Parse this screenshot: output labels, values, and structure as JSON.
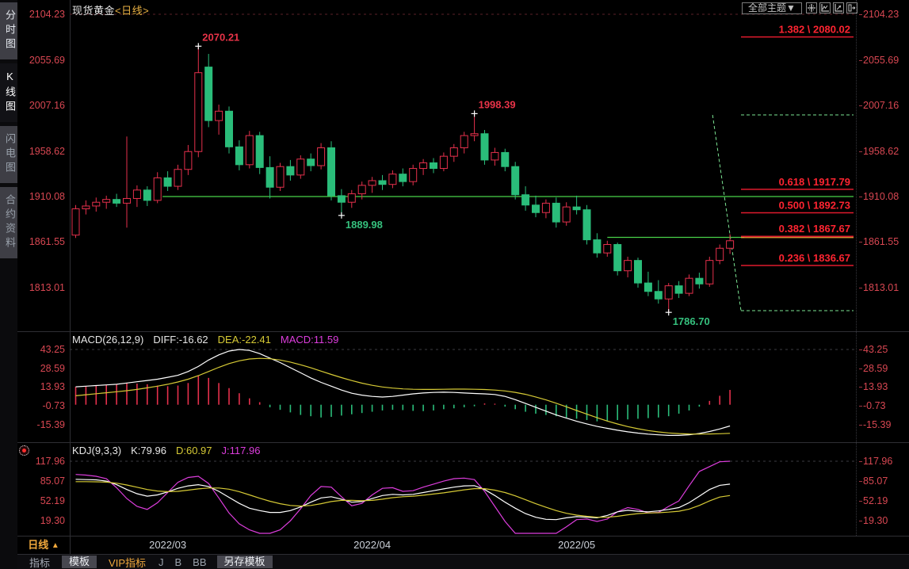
{
  "app": {
    "title_symbol": "现货黄金",
    "title_period": "<日线>",
    "theme_button": "全部主题▼"
  },
  "sidebar": {
    "items": [
      {
        "label": "分时图",
        "state": "normal"
      },
      {
        "label": "K线图",
        "state": "active"
      },
      {
        "label": "闪电图",
        "state": "dim"
      },
      {
        "label": "合约资料",
        "state": "dim"
      }
    ]
  },
  "top_icons": [
    {
      "name": "crosshair-icon"
    },
    {
      "name": "chart-line-icon"
    },
    {
      "name": "chart-arrow-icon"
    },
    {
      "name": "panel-arrow-icon"
    }
  ],
  "xaxis": {
    "period_label": "日线",
    "period_arrow": "▲",
    "months": [
      {
        "label": "2022/03",
        "index": 9
      },
      {
        "label": "2022/04",
        "index": 29
      },
      {
        "label": "2022/05",
        "index": 49
      }
    ]
  },
  "bottom_tabs": [
    {
      "label": "指标",
      "style": "plain"
    },
    {
      "label": "模板",
      "style": "chip"
    },
    {
      "label": "VIP指标",
      "style": "vip"
    },
    {
      "label": "J",
      "style": "key"
    },
    {
      "label": "B",
      "style": "key"
    },
    {
      "label": "BB",
      "style": "key"
    },
    {
      "label": "另存模板",
      "style": "chip"
    }
  ],
  "chart_data": [
    {
      "type": "candlestick",
      "title": "现货黄金 日线",
      "y_ticks": [
        "2104.23",
        "2055.69",
        "2007.16",
        "1958.62",
        "1910.08",
        "1861.55",
        "1813.01"
      ],
      "ylim": [
        1813.01,
        2104.23
      ],
      "up_color": "#e5304c",
      "down_color": "#2abd7a",
      "candles": [
        [
          1869,
          1901,
          1866,
          1897
        ],
        [
          1897,
          1906,
          1891,
          1900
        ],
        [
          1900,
          1909,
          1894,
          1904
        ],
        [
          1904,
          1911,
          1897,
          1907
        ],
        [
          1907,
          1913,
          1899,
          1903
        ],
        [
          1903,
          1974,
          1877,
          1908
        ],
        [
          1908,
          1922,
          1899,
          1917
        ],
        [
          1917,
          1921,
          1900,
          1906
        ],
        [
          1906,
          1936,
          1903,
          1930
        ],
        [
          1930,
          1937,
          1916,
          1921
        ],
        [
          1921,
          1944,
          1917,
          1939
        ],
        [
          1939,
          1965,
          1933,
          1958
        ],
        [
          1958,
          2070.21,
          1952,
          2042
        ],
        [
          2048,
          2062,
          1984,
          1991
        ],
        [
          1991,
          2008,
          1976,
          2001
        ],
        [
          2001,
          2006,
          1956,
          1963
        ],
        [
          1963,
          1970,
          1938,
          1944
        ],
        [
          1944,
          1980,
          1940,
          1975
        ],
        [
          1975,
          1979,
          1934,
          1941
        ],
        [
          1941,
          1953,
          1908,
          1920
        ],
        [
          1920,
          1946,
          1916,
          1942
        ],
        [
          1942,
          1949,
          1927,
          1933
        ],
        [
          1933,
          1954,
          1929,
          1950
        ],
        [
          1950,
          1956,
          1937,
          1943
        ],
        [
          1943,
          1967,
          1939,
          1962
        ],
        [
          1962,
          1969,
          1906,
          1911
        ],
        [
          1911,
          1918,
          1889.98,
          1904
        ],
        [
          1904,
          1917,
          1898,
          1913
        ],
        [
          1913,
          1926,
          1907,
          1922
        ],
        [
          1922,
          1931,
          1914,
          1927
        ],
        [
          1927,
          1933,
          1917,
          1923
        ],
        [
          1923,
          1938,
          1919,
          1934
        ],
        [
          1934,
          1940,
          1921,
          1926
        ],
        [
          1926,
          1944,
          1922,
          1940
        ],
        [
          1940,
          1950,
          1933,
          1946
        ],
        [
          1946,
          1951,
          1935,
          1940
        ],
        [
          1940,
          1957,
          1937,
          1953
        ],
        [
          1953,
          1966,
          1947,
          1962
        ],
        [
          1962,
          1979,
          1956,
          1975
        ],
        [
          1975,
          1998.39,
          1969,
          1977
        ],
        [
          1977,
          1981,
          1944,
          1949
        ],
        [
          1949,
          1962,
          1943,
          1957
        ],
        [
          1957,
          1961,
          1937,
          1942
        ],
        [
          1942,
          1947,
          1907,
          1912
        ],
        [
          1912,
          1921,
          1895,
          1901
        ],
        [
          1901,
          1911,
          1888,
          1893
        ],
        [
          1893,
          1907,
          1887,
          1903
        ],
        [
          1903,
          1909,
          1877,
          1883
        ],
        [
          1883,
          1904,
          1879,
          1899
        ],
        [
          1899,
          1911,
          1891,
          1896
        ],
        [
          1896,
          1901,
          1859,
          1864
        ],
        [
          1864,
          1871,
          1845,
          1850
        ],
        [
          1850,
          1863,
          1846,
          1859
        ],
        [
          1859,
          1861,
          1826,
          1831
        ],
        [
          1831,
          1846,
          1824,
          1842
        ],
        [
          1842,
          1845,
          1813,
          1818
        ],
        [
          1818,
          1830,
          1804,
          1809
        ],
        [
          1809,
          1821,
          1796,
          1801
        ],
        [
          1801,
          1818,
          1786.7,
          1815
        ],
        [
          1815,
          1820,
          1802,
          1807
        ],
        [
          1807,
          1827,
          1804,
          1823
        ],
        [
          1823,
          1829,
          1812,
          1817
        ],
        [
          1817,
          1846,
          1814,
          1842
        ],
        [
          1842,
          1859,
          1838,
          1855
        ],
        [
          1855,
          1870,
          1849,
          1863
        ]
      ],
      "annotations": [
        {
          "candle": 12,
          "point": "high",
          "text": "2070.21",
          "color": "#e83348",
          "side": "above"
        },
        {
          "candle": 39,
          "point": "high",
          "text": "1998.39",
          "color": "#e83348",
          "side": "above"
        },
        {
          "candle": 26,
          "point": "low",
          "text": "1889.98",
          "color": "#35c07d",
          "side": "below"
        },
        {
          "candle": 58,
          "point": "low",
          "text": "1786.70",
          "color": "#35c07d",
          "side": "below"
        }
      ],
      "hlines": [
        {
          "price": 1910.08,
          "from_candle": 8.5,
          "to_edge": true,
          "color": "#49d249"
        },
        {
          "price": 1866.6,
          "from_candle": 52,
          "to_candle": 65.4,
          "color": "#49d249"
        },
        {
          "price": 1867.67,
          "fib_zone": true,
          "color": "#f0a238"
        }
      ],
      "fib_levels": [
        {
          "ratio": "1.382",
          "price": "2080.02"
        },
        {
          "ratio": "0.618",
          "price": "1917.79"
        },
        {
          "ratio": "0.500",
          "price": "1892.73"
        },
        {
          "ratio": "0.382",
          "price": "1867.67"
        },
        {
          "ratio": "0.236",
          "price": "1836.67"
        }
      ],
      "projection": {
        "start_candle": 62.3,
        "top_price": 1997,
        "bottom_price": 1788.5,
        "color": "#7be392"
      }
    },
    {
      "type": "macd",
      "header": {
        "title": "MACD(26,12,9)",
        "diff": "DIFF:-16.62",
        "dea": "DEA:-22.41",
        "macd": "MACD:11.59"
      },
      "y_ticks": [
        "43.25",
        "28.59",
        "13.93",
        "-0.73",
        "-15.39"
      ],
      "colors": {
        "pos": "#e5304c",
        "neg": "#2abd7a",
        "diff": "#ffffff",
        "dea": "#d6ca35"
      },
      "hist": [
        14,
        14.5,
        15,
        15.5,
        16,
        17,
        16.5,
        16,
        15,
        14.5,
        15,
        17,
        23,
        21,
        17,
        13,
        9,
        5,
        2,
        -2,
        -4,
        -6,
        -8,
        -9,
        -10,
        -9.5,
        -8.5,
        -7.5,
        -6.5,
        -5.5,
        -4.5,
        -4,
        -4.2,
        -4.8,
        -5,
        -4.5,
        -3.5,
        -2.8,
        -2,
        -1.2,
        1,
        0.8,
        -1.5,
        -3.5,
        -5.5,
        -7,
        -8,
        -9,
        -10,
        -11,
        -12,
        -13,
        -12.5,
        -12,
        -11.5,
        -11,
        -10.5,
        -10,
        -9,
        -7,
        -4.5,
        -1.5,
        3,
        7,
        11.59
      ],
      "diff": [
        14,
        14.5,
        15,
        15.5,
        16,
        17,
        18,
        19,
        20,
        21.5,
        23,
        26,
        30,
        35,
        39,
        42,
        43.25,
        42.5,
        40,
        36.5,
        33,
        29,
        25,
        21,
        17.5,
        14.5,
        11.5,
        9,
        7.5,
        6.5,
        6,
        6.5,
        7.5,
        8.5,
        9.2,
        9.6,
        9.8,
        9.6,
        9.2,
        8.8,
        8.5,
        8,
        6.5,
        4,
        1,
        -2,
        -5,
        -8,
        -10.5,
        -13,
        -15,
        -17,
        -18.5,
        -20,
        -21.2,
        -22.2,
        -23,
        -23.6,
        -24,
        -24,
        -23.5,
        -22.5,
        -21,
        -19,
        -16.62
      ],
      "dea": [
        7,
        7.8,
        8.6,
        9.4,
        10.2,
        11,
        12,
        13.2,
        14.5,
        16,
        17.8,
        20,
        22.8,
        26,
        29.3,
        32.2,
        34.4,
        35.8,
        36.3,
        36,
        35,
        33.4,
        31.3,
        28.9,
        26.3,
        23.7,
        21.2,
        18.9,
        16.9,
        15.2,
        13.9,
        13,
        12.4,
        12.1,
        12,
        12,
        12.1,
        12.2,
        12.2,
        12.1,
        11.9,
        11.5,
        10.8,
        9.7,
        8.1,
        6.1,
        3.8,
        1.2,
        -1.6,
        -4.5,
        -7.4,
        -10.2,
        -12.8,
        -15.1,
        -17.1,
        -18.8,
        -20.2,
        -21.3,
        -22.1,
        -22.6,
        -22.9,
        -23,
        -22.9,
        -22.7,
        -22.41
      ]
    },
    {
      "type": "kdj",
      "header": {
        "title": "KDJ(9,3,3)",
        "k": "K:79.96",
        "d": "D:60.97",
        "j": "J:117.96"
      },
      "y_ticks": [
        "117.96",
        "85.07",
        "52.19",
        "19.30"
      ],
      "colors": {
        "k": "#ffffff",
        "d": "#d6ca35",
        "j": "#dd3ddd"
      },
      "k": [
        88,
        87.5,
        87,
        85,
        79,
        71,
        64,
        60,
        62,
        67,
        73,
        77,
        79,
        76,
        68,
        58,
        48,
        40,
        36,
        33,
        33,
        36,
        42,
        50,
        57,
        59,
        55,
        50,
        51,
        56,
        61,
        63,
        62,
        63,
        66,
        69,
        72,
        75,
        77,
        77.5,
        71,
        61,
        50,
        40,
        31,
        25,
        21.5,
        21,
        24,
        26,
        25,
        24,
        28,
        34,
        36.5,
        35,
        34,
        35.5,
        38,
        41,
        49,
        60,
        71,
        78,
        79.96
      ],
      "d": [
        84,
        84,
        83.8,
        83.2,
        81.5,
        78.5,
        74.8,
        71,
        68.5,
        67.5,
        68,
        70,
        72,
        73.5,
        73.5,
        71.5,
        67.5,
        62,
        56.5,
        51.5,
        47.5,
        44.5,
        43.5,
        44.5,
        47.5,
        51,
        53,
        53,
        52.5,
        53,
        55,
        57.5,
        59,
        60,
        61.5,
        63.5,
        65.5,
        68,
        70.5,
        72.5,
        72.5,
        70,
        66,
        60.5,
        54,
        47.5,
        41.5,
        36,
        31.5,
        28.5,
        26.5,
        25,
        25,
        26.5,
        29,
        31,
        32,
        32.5,
        33.5,
        35,
        38.5,
        44.5,
        52,
        58.5,
        60.97
      ],
      "j": [
        96,
        95,
        93,
        89,
        74,
        56,
        43,
        38,
        49,
        66,
        83,
        91,
        93,
        81,
        57,
        32,
        14,
        4,
        -3,
        -5,
        4,
        19,
        39,
        61,
        76,
        75,
        59,
        44,
        48,
        62,
        73,
        74,
        68,
        69,
        75,
        80,
        85,
        89,
        90,
        87.5,
        68,
        43,
        18,
        -2,
        -6,
        -8,
        -7,
        -4,
        9,
        21,
        22,
        18,
        22,
        34,
        41,
        38,
        32,
        33,
        43,
        52,
        77,
        101,
        109,
        117,
        117.96
      ]
    }
  ]
}
